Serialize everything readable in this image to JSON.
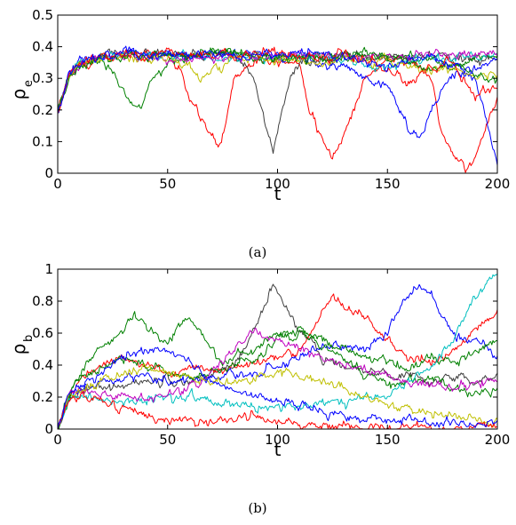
{
  "colors": {
    "blue": "#0000ff",
    "green": "#008000",
    "red": "#ff0000",
    "cyan": "#00bfbf",
    "magenta": "#bf00bf",
    "olive": "#bfbf00",
    "gray": "#404040"
  },
  "chart_data": [
    {
      "type": "line",
      "caption": "(a)",
      "xlabel": "t",
      "ylabel": "ρ",
      "ylabel_sub": "e",
      "xlim": [
        0,
        200
      ],
      "ylim": [
        0,
        0.5
      ],
      "xticks": [
        0,
        50,
        100,
        150,
        200
      ],
      "yticks": [
        0,
        0.1,
        0.2,
        0.3,
        0.4,
        0.5
      ],
      "ytick_labels": [
        "0",
        "0.1",
        "0.2",
        "0.3",
        "0.4",
        "0.5"
      ],
      "grid": false,
      "legend": "none",
      "series": [
        {
          "color": "red",
          "x": [
            0,
            5,
            10,
            20,
            30,
            40,
            50,
            55,
            60,
            65,
            70,
            73,
            76,
            80,
            90,
            100,
            110,
            115,
            120,
            125,
            130,
            140,
            150,
            160,
            170,
            175,
            180,
            185,
            190,
            195,
            200
          ],
          "y": [
            0.19,
            0.3,
            0.34,
            0.37,
            0.38,
            0.38,
            0.37,
            0.33,
            0.24,
            0.17,
            0.12,
            0.08,
            0.14,
            0.3,
            0.36,
            0.36,
            0.35,
            0.2,
            0.1,
            0.05,
            0.12,
            0.3,
            0.36,
            0.36,
            0.3,
            0.12,
            0.05,
            0.02,
            0.04,
            0.15,
            0.25
          ]
        },
        {
          "color": "gray",
          "x": [
            0,
            5,
            10,
            20,
            30,
            40,
            50,
            60,
            70,
            80,
            85,
            90,
            95,
            98,
            100,
            103,
            106,
            110,
            120,
            130,
            140,
            150,
            160,
            170,
            180,
            190,
            200
          ],
          "y": [
            0.19,
            0.3,
            0.35,
            0.37,
            0.38,
            0.38,
            0.38,
            0.37,
            0.37,
            0.37,
            0.34,
            0.28,
            0.14,
            0.07,
            0.13,
            0.22,
            0.3,
            0.34,
            0.36,
            0.37,
            0.37,
            0.36,
            0.37,
            0.37,
            0.36,
            0.36,
            0.37
          ]
        },
        {
          "color": "blue",
          "x": [
            0,
            5,
            10,
            20,
            30,
            40,
            50,
            60,
            70,
            80,
            90,
            100,
            110,
            120,
            130,
            140,
            150,
            155,
            160,
            165,
            170,
            180,
            190,
            195,
            200
          ],
          "y": [
            0.19,
            0.31,
            0.35,
            0.37,
            0.38,
            0.38,
            0.38,
            0.37,
            0.37,
            0.38,
            0.38,
            0.37,
            0.36,
            0.34,
            0.34,
            0.3,
            0.28,
            0.2,
            0.14,
            0.12,
            0.2,
            0.32,
            0.3,
            0.18,
            0.03
          ]
        },
        {
          "color": "green",
          "x": [
            0,
            5,
            10,
            20,
            25,
            30,
            35,
            38,
            42,
            50,
            60,
            70,
            80,
            90,
            100,
            110,
            120,
            130,
            140,
            150,
            160,
            170,
            180,
            190,
            200
          ],
          "y": [
            0.19,
            0.3,
            0.35,
            0.36,
            0.32,
            0.26,
            0.22,
            0.21,
            0.29,
            0.34,
            0.37,
            0.38,
            0.38,
            0.36,
            0.35,
            0.37,
            0.37,
            0.36,
            0.37,
            0.37,
            0.37,
            0.36,
            0.33,
            0.36,
            0.37
          ]
        },
        {
          "color": "cyan",
          "x": [
            0,
            5,
            10,
            20,
            30,
            40,
            50,
            60,
            70,
            80,
            90,
            100,
            110,
            120,
            130,
            140,
            150,
            160,
            170,
            180,
            190,
            200
          ],
          "y": [
            0.19,
            0.31,
            0.35,
            0.37,
            0.38,
            0.37,
            0.37,
            0.37,
            0.37,
            0.36,
            0.36,
            0.37,
            0.37,
            0.37,
            0.36,
            0.34,
            0.33,
            0.36,
            0.37,
            0.36,
            0.37,
            0.38
          ]
        },
        {
          "color": "magenta",
          "x": [
            0,
            5,
            10,
            20,
            30,
            40,
            50,
            60,
            70,
            80,
            90,
            100,
            110,
            120,
            130,
            140,
            150,
            160,
            170,
            180,
            190,
            200
          ],
          "y": [
            0.19,
            0.31,
            0.35,
            0.37,
            0.37,
            0.37,
            0.36,
            0.35,
            0.36,
            0.37,
            0.37,
            0.37,
            0.38,
            0.37,
            0.37,
            0.36,
            0.37,
            0.37,
            0.38,
            0.37,
            0.38,
            0.38
          ]
        },
        {
          "color": "olive",
          "x": [
            0,
            5,
            10,
            20,
            30,
            40,
            50,
            60,
            65,
            70,
            80,
            90,
            100,
            110,
            120,
            130,
            140,
            150,
            160,
            170,
            180,
            190,
            200
          ],
          "y": [
            0.19,
            0.31,
            0.34,
            0.36,
            0.37,
            0.36,
            0.37,
            0.33,
            0.3,
            0.32,
            0.36,
            0.37,
            0.36,
            0.36,
            0.35,
            0.37,
            0.35,
            0.36,
            0.34,
            0.32,
            0.33,
            0.3,
            0.32
          ]
        },
        {
          "color": "green",
          "x": [
            0,
            5,
            10,
            20,
            30,
            40,
            50,
            60,
            70,
            80,
            90,
            100,
            110,
            120,
            130,
            140,
            150,
            160,
            170,
            180,
            190,
            200
          ],
          "y": [
            0.19,
            0.3,
            0.34,
            0.36,
            0.37,
            0.37,
            0.37,
            0.38,
            0.38,
            0.38,
            0.37,
            0.37,
            0.36,
            0.36,
            0.37,
            0.38,
            0.37,
            0.35,
            0.33,
            0.34,
            0.31,
            0.3
          ]
        },
        {
          "color": "red",
          "x": [
            0,
            5,
            10,
            20,
            30,
            40,
            50,
            60,
            70,
            80,
            90,
            100,
            110,
            120,
            130,
            140,
            150,
            160,
            170,
            180,
            190,
            200
          ],
          "y": [
            0.19,
            0.31,
            0.35,
            0.37,
            0.38,
            0.37,
            0.38,
            0.37,
            0.37,
            0.38,
            0.38,
            0.38,
            0.37,
            0.36,
            0.37,
            0.36,
            0.33,
            0.28,
            0.34,
            0.35,
            0.25,
            0.27
          ]
        },
        {
          "color": "blue",
          "x": [
            0,
            5,
            10,
            20,
            30,
            40,
            50,
            60,
            70,
            80,
            90,
            100,
            110,
            120,
            130,
            140,
            150,
            160,
            170,
            180,
            190,
            200
          ],
          "y": [
            0.19,
            0.31,
            0.35,
            0.37,
            0.38,
            0.37,
            0.37,
            0.37,
            0.38,
            0.37,
            0.37,
            0.37,
            0.38,
            0.38,
            0.37,
            0.35,
            0.34,
            0.36,
            0.37,
            0.34,
            0.32,
            0.36
          ]
        }
      ]
    },
    {
      "type": "line",
      "caption": "(b)",
      "xlabel": "t",
      "ylabel": "ρ",
      "ylabel_sub": "b",
      "xlim": [
        0,
        200
      ],
      "ylim": [
        0,
        1
      ],
      "xticks": [
        0,
        50,
        100,
        150,
        200
      ],
      "yticks": [
        0,
        0.2,
        0.4,
        0.6,
        0.8,
        1
      ],
      "ytick_labels": [
        "0",
        "0.2",
        "0.4",
        "0.6",
        "0.8",
        "1"
      ],
      "grid": false,
      "legend": "none",
      "series": [
        {
          "color": "gray",
          "x": [
            0,
            5,
            10,
            20,
            30,
            40,
            50,
            60,
            70,
            80,
            85,
            90,
            95,
            98,
            100,
            103,
            106,
            110,
            115,
            120,
            130,
            140,
            150,
            160,
            170,
            180,
            190,
            200
          ],
          "y": [
            0,
            0.2,
            0.24,
            0.26,
            0.28,
            0.3,
            0.3,
            0.3,
            0.32,
            0.4,
            0.5,
            0.65,
            0.82,
            0.9,
            0.86,
            0.78,
            0.7,
            0.6,
            0.55,
            0.45,
            0.4,
            0.36,
            0.34,
            0.34,
            0.3,
            0.35,
            0.3,
            0.34
          ]
        },
        {
          "color": "red",
          "x": [
            0,
            5,
            10,
            20,
            30,
            40,
            50,
            60,
            70,
            80,
            90,
            100,
            110,
            115,
            120,
            125,
            130,
            140,
            150,
            160,
            170,
            180,
            190,
            200
          ],
          "y": [
            0,
            0.2,
            0.3,
            0.4,
            0.45,
            0.4,
            0.35,
            0.38,
            0.35,
            0.4,
            0.42,
            0.45,
            0.5,
            0.6,
            0.72,
            0.82,
            0.78,
            0.7,
            0.55,
            0.45,
            0.42,
            0.48,
            0.62,
            0.72
          ]
        },
        {
          "color": "blue",
          "x": [
            0,
            5,
            10,
            20,
            30,
            40,
            50,
            60,
            70,
            80,
            90,
            100,
            110,
            120,
            130,
            140,
            150,
            155,
            160,
            165,
            170,
            175,
            180,
            190,
            200
          ],
          "y": [
            0,
            0.2,
            0.25,
            0.3,
            0.32,
            0.35,
            0.3,
            0.3,
            0.32,
            0.34,
            0.35,
            0.4,
            0.45,
            0.5,
            0.52,
            0.5,
            0.6,
            0.75,
            0.85,
            0.88,
            0.84,
            0.7,
            0.6,
            0.55,
            0.45
          ]
        },
        {
          "color": "green",
          "x": [
            0,
            5,
            10,
            20,
            30,
            35,
            40,
            45,
            50,
            55,
            60,
            65,
            70,
            75,
            80,
            90,
            100,
            105,
            110,
            115,
            120,
            130,
            140,
            150,
            160,
            170,
            180,
            190,
            200
          ],
          "y": [
            0,
            0.2,
            0.35,
            0.52,
            0.62,
            0.7,
            0.65,
            0.58,
            0.55,
            0.64,
            0.7,
            0.6,
            0.5,
            0.42,
            0.45,
            0.5,
            0.6,
            0.55,
            0.62,
            0.6,
            0.52,
            0.45,
            0.35,
            0.28,
            0.3,
            0.32,
            0.24,
            0.22,
            0.25
          ]
        },
        {
          "color": "green",
          "x": [
            0,
            5,
            10,
            20,
            30,
            40,
            50,
            60,
            70,
            80,
            90,
            100,
            110,
            120,
            130,
            140,
            150,
            160,
            170,
            180,
            190,
            200
          ],
          "y": [
            0,
            0.22,
            0.3,
            0.38,
            0.44,
            0.4,
            0.36,
            0.33,
            0.35,
            0.4,
            0.45,
            0.58,
            0.62,
            0.55,
            0.5,
            0.44,
            0.42,
            0.38,
            0.44,
            0.4,
            0.48,
            0.56
          ]
        },
        {
          "color": "cyan",
          "x": [
            0,
            5,
            10,
            20,
            30,
            40,
            50,
            60,
            70,
            80,
            90,
            100,
            110,
            120,
            130,
            140,
            150,
            160,
            170,
            180,
            185,
            190,
            195,
            200
          ],
          "y": [
            0,
            0.18,
            0.2,
            0.18,
            0.16,
            0.18,
            0.2,
            0.2,
            0.18,
            0.16,
            0.14,
            0.15,
            0.14,
            0.15,
            0.18,
            0.2,
            0.22,
            0.3,
            0.4,
            0.55,
            0.72,
            0.82,
            0.9,
            0.98
          ]
        },
        {
          "color": "magenta",
          "x": [
            0,
            5,
            10,
            20,
            30,
            40,
            50,
            60,
            70,
            80,
            90,
            100,
            110,
            120,
            130,
            140,
            150,
            160,
            170,
            180,
            190,
            200
          ],
          "y": [
            0,
            0.2,
            0.24,
            0.22,
            0.2,
            0.2,
            0.22,
            0.25,
            0.35,
            0.5,
            0.6,
            0.55,
            0.5,
            0.45,
            0.4,
            0.38,
            0.33,
            0.3,
            0.28,
            0.25,
            0.28,
            0.3
          ]
        },
        {
          "color": "olive",
          "x": [
            0,
            5,
            10,
            20,
            30,
            40,
            50,
            60,
            70,
            80,
            90,
            100,
            110,
            120,
            130,
            140,
            150,
            160,
            170,
            180,
            190,
            200
          ],
          "y": [
            0,
            0.2,
            0.25,
            0.3,
            0.35,
            0.38,
            0.35,
            0.32,
            0.28,
            0.3,
            0.32,
            0.35,
            0.33,
            0.3,
            0.25,
            0.2,
            0.15,
            0.12,
            0.1,
            0.08,
            0.06,
            0.04
          ]
        },
        {
          "color": "red",
          "x": [
            0,
            5,
            10,
            20,
            30,
            40,
            50,
            60,
            70,
            80,
            90,
            100,
            110,
            120,
            130,
            140,
            150,
            160,
            170,
            180,
            190,
            200
          ],
          "y": [
            0,
            0.18,
            0.2,
            0.16,
            0.12,
            0.08,
            0.06,
            0.05,
            0.04,
            0.06,
            0.08,
            0.05,
            0.03,
            0.02,
            0.02,
            0.01,
            0.01,
            0.01,
            0.01,
            0.01,
            0.01,
            0.01
          ]
        },
        {
          "color": "blue",
          "x": [
            0,
            5,
            10,
            20,
            30,
            40,
            50,
            60,
            70,
            80,
            90,
            100,
            110,
            120,
            130,
            140,
            150,
            160,
            170,
            180,
            190,
            200
          ],
          "y": [
            0,
            0.22,
            0.28,
            0.35,
            0.45,
            0.5,
            0.48,
            0.42,
            0.3,
            0.25,
            0.2,
            0.18,
            0.15,
            0.1,
            0.08,
            0.06,
            0.05,
            0.04,
            0.04,
            0.03,
            0.03,
            0.03
          ]
        }
      ]
    }
  ]
}
